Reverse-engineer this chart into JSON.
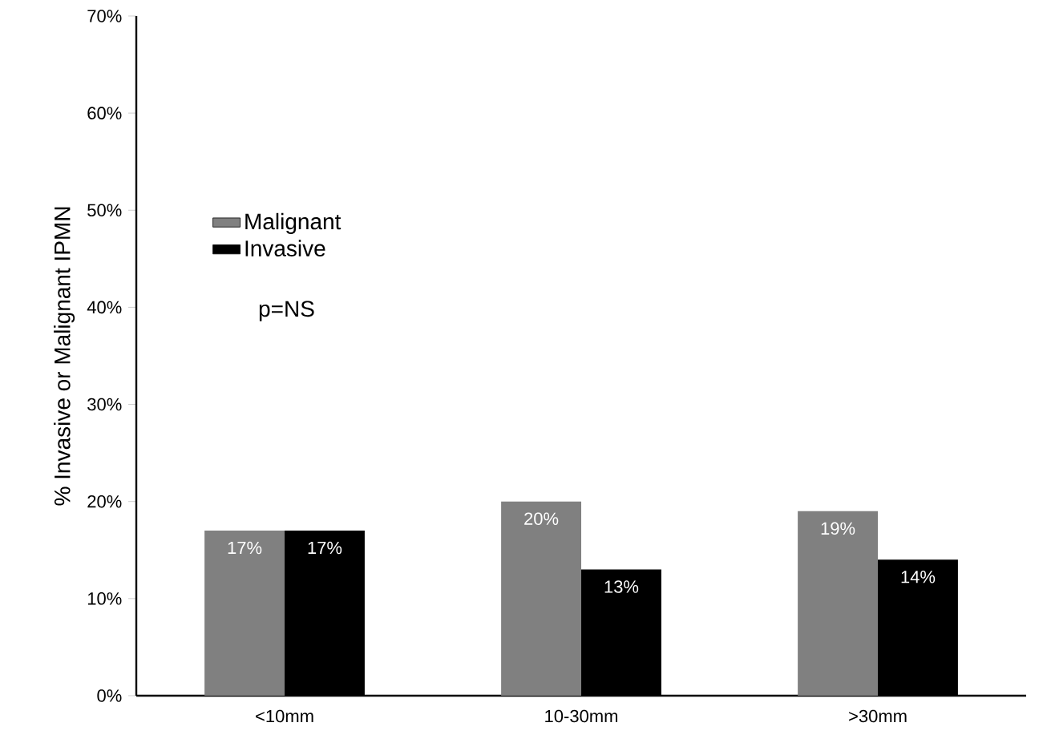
{
  "chart_data": {
    "type": "bar",
    "categories": [
      "<10mm",
      "10-30mm",
      ">30mm"
    ],
    "series": [
      {
        "name": "Malignant",
        "color": "#808080",
        "values": [
          17,
          20,
          19
        ],
        "value_labels": [
          "17%",
          "20%",
          "19%"
        ]
      },
      {
        "name": "Invasive",
        "color": "#000000",
        "values": [
          17,
          13,
          14
        ],
        "value_labels": [
          "17%",
          "13%",
          "14%"
        ]
      }
    ],
    "ylabel": "% Invasive or Malignant IPMN",
    "ylim": [
      0,
      70
    ],
    "yticks": [
      {
        "value": 0,
        "label": "0%"
      },
      {
        "value": 10,
        "label": "10%"
      },
      {
        "value": 20,
        "label": "20%"
      },
      {
        "value": 30,
        "label": "30%"
      },
      {
        "value": 40,
        "label": "40%"
      },
      {
        "value": 50,
        "label": "50%"
      },
      {
        "value": 60,
        "label": "60%"
      },
      {
        "value": 70,
        "label": "70%"
      }
    ],
    "annotations": [
      "p=NS"
    ],
    "legend": "left",
    "grid": false
  }
}
